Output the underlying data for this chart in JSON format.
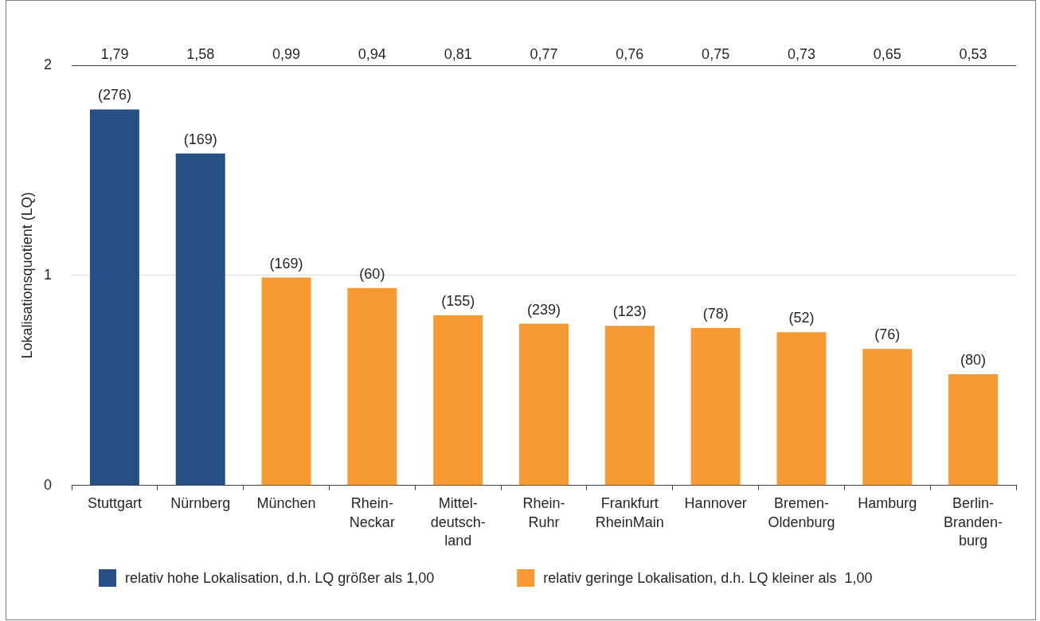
{
  "chart_data": {
    "type": "bar",
    "ylabel": "Lokalisationsquotient (LQ)",
    "categories": [
      "Stuttgart",
      "Nürnberg",
      "München",
      "Rhein-\nNeckar",
      "Mittel-\ndeutsch-\nland",
      "Rhein-\nRuhr",
      "Frankfurt\nRheinMain",
      "Hannover",
      "Bremen-\nOldenburg",
      "Hamburg",
      "Berlin-\nBranden-\nburg"
    ],
    "series": [
      {
        "name": "relativ hohe Lokalisation, d.h. LQ größer als 1,00",
        "color": "#264f86",
        "values": [
          1.79,
          1.58,
          null,
          null,
          null,
          null,
          null,
          null,
          null,
          null,
          null
        ]
      },
      {
        "name": "relativ geringe Lokalisation, d.h. LQ kleiner als  1,00",
        "color": "#f79a33",
        "values": [
          null,
          null,
          0.99,
          0.94,
          0.81,
          0.77,
          0.76,
          0.75,
          0.73,
          0.65,
          0.53
        ]
      }
    ],
    "ylim": [
      0,
      2
    ],
    "yticks": [
      0,
      1,
      2
    ],
    "grid": "y",
    "legend": "bottom",
    "annotations": [
      "1,79",
      "1,58",
      "0,99",
      "0,94",
      "0,81",
      "0,77",
      "0,76",
      "0,75",
      "0,73",
      "0,65",
      "0,53",
      {
        "text": "(276)",
        "x": "Stuttgart",
        "y": 1.79
      },
      {
        "text": "(169)",
        "x": "Nürnberg",
        "y": 1.58
      },
      {
        "text": "(169)",
        "x": "München",
        "y": 0.99
      },
      {
        "text": "(60)",
        "x": "Rhein-\nNeckar",
        "y": 0.94
      },
      {
        "text": "(155)",
        "x": "Mittel-\ndeutsch-\nland",
        "y": 0.81
      },
      {
        "text": "(239)",
        "x": "Rhein-\nRuhr",
        "y": 0.77
      },
      {
        "text": "(123)",
        "x": "Frankfurt\nRheinMain",
        "y": 0.76
      },
      {
        "text": "(78)",
        "x": "Hannover",
        "y": 0.75
      },
      {
        "text": "(52)",
        "x": "Bremen-\nOldenburg",
        "y": 0.73
      },
      {
        "text": "(76)",
        "x": "Hamburg",
        "y": 0.65
      },
      {
        "text": "(80)",
        "x": "Berlin-\nBranden-\nburg",
        "y": 0.53
      }
    ]
  }
}
